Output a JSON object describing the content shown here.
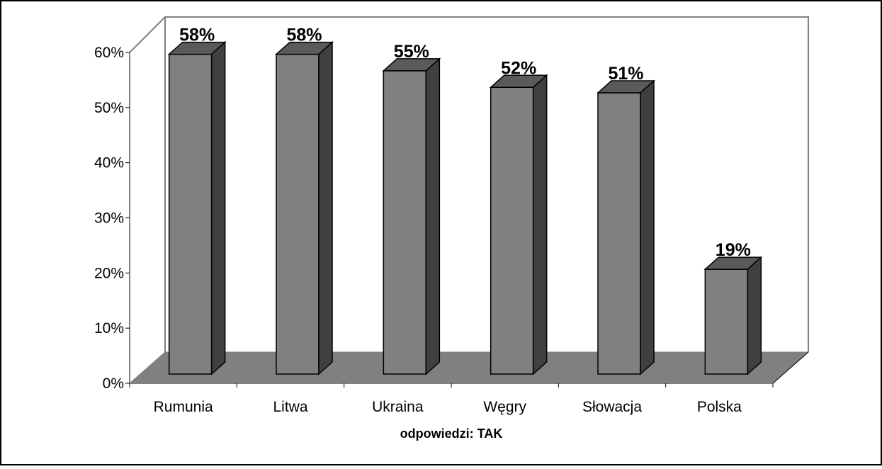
{
  "chart_data": {
    "type": "bar",
    "style": "3d-column",
    "categories": [
      "Rumunia",
      "Litwa",
      "Ukraina",
      "Węgry",
      "Słowacja",
      "Polska"
    ],
    "values": [
      58,
      58,
      55,
      52,
      51,
      19
    ],
    "data_labels": [
      "58%",
      "58%",
      "55%",
      "52%",
      "51%",
      "19%"
    ],
    "xlabel": "odpowiedzi: TAK",
    "ylabel": "",
    "title": "",
    "ylim": [
      0,
      60
    ],
    "yticks": [
      "0%",
      "10%",
      "20%",
      "30%",
      "40%",
      "50%",
      "60%"
    ],
    "grid": false,
    "legend": "none",
    "colors": {
      "bar_front": "#808080",
      "bar_top": "#5a5a5a",
      "bar_side": "#404040",
      "floor": "#808080",
      "wall_line": "#808080",
      "frame": "#000000"
    }
  }
}
